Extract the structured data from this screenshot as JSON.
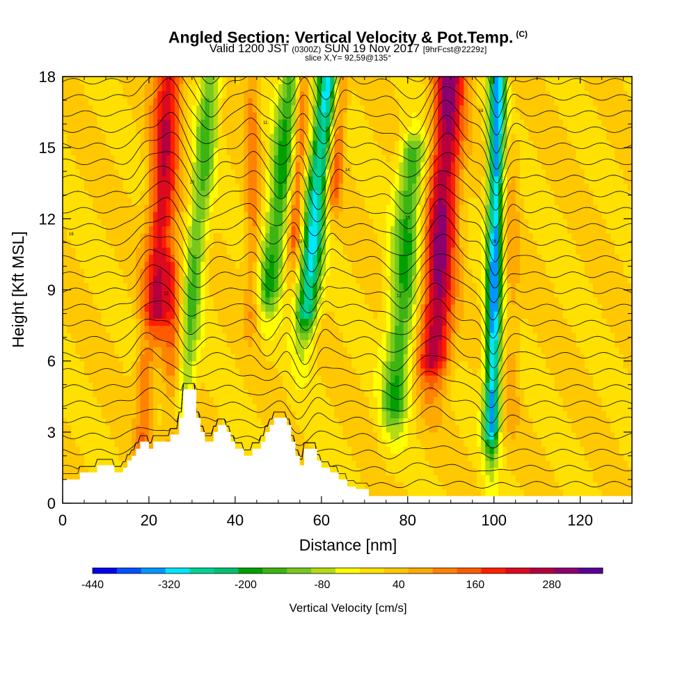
{
  "header": {
    "title": "Angled Section: Vertical Velocity & Pot.Temp.",
    "copyright": "(C)",
    "valid_pre": "Valid 1200 JST",
    "valid_z": "(0300Z)",
    "valid_date": "SUN 19 Nov 2017",
    "forecast": "[9hrFcst@2229z]",
    "slice": "slice X,Y= 92,59@135°"
  },
  "chart_data": {
    "type": "heatmap",
    "xlabel": "Distance [nm]",
    "ylabel": "Height [Kft MSL]",
    "xlim": [
      0,
      132
    ],
    "ylim": [
      0,
      18
    ],
    "x_ticks": [
      0,
      20,
      40,
      60,
      80,
      100,
      120
    ],
    "y_ticks": [
      0,
      3,
      6,
      9,
      12,
      15,
      18
    ],
    "velocity_bands": [
      {
        "center": 22,
        "width": 3.2,
        "amp": 230,
        "top": 18,
        "bottom": 8,
        "tilt": 0.3
      },
      {
        "center": 26,
        "width": 2.5,
        "amp": 120,
        "top": 10,
        "bottom": 2,
        "tilt": 0.0
      },
      {
        "center": 30,
        "width": 2.5,
        "amp": -170,
        "top": 18,
        "bottom": 4,
        "tilt": 0.5
      },
      {
        "center": 44,
        "width": 1.8,
        "amp": 100,
        "top": 18,
        "bottom": 8,
        "tilt": 0.0
      },
      {
        "center": 48,
        "width": 3.0,
        "amp": -210,
        "top": 18,
        "bottom": 9,
        "tilt": 0.6
      },
      {
        "center": 53,
        "width": 1.8,
        "amp": 170,
        "top": 18,
        "bottom": 11,
        "tilt": 0.3
      },
      {
        "center": 57,
        "width": 2.6,
        "amp": -330,
        "top": 18,
        "bottom": 8,
        "tilt": 0.5
      },
      {
        "center": 61,
        "width": 1.8,
        "amp": 150,
        "top": 18,
        "bottom": 13,
        "tilt": 0.4
      },
      {
        "center": 79,
        "width": 3.2,
        "amp": -200,
        "top": 15,
        "bottom": 4,
        "tilt": 0.4
      },
      {
        "center": 87,
        "width": 3.6,
        "amp": 290,
        "top": 18,
        "bottom": 6,
        "tilt": 0.3
      },
      {
        "center": 100,
        "width": 1.8,
        "amp": -380,
        "top": 18,
        "bottom": 3,
        "tilt": 0.1
      },
      {
        "center": 104,
        "width": 1.8,
        "amp": 60,
        "top": 15,
        "bottom": 4,
        "tilt": 0.0
      },
      {
        "center": 19,
        "width": 2.0,
        "amp": 110,
        "top": 6,
        "bottom": 0,
        "tilt": 0.0
      }
    ],
    "terrain": [
      [
        0,
        1.0
      ],
      [
        4,
        1.0
      ],
      [
        4,
        1.3
      ],
      [
        8,
        1.3
      ],
      [
        8,
        1.6
      ],
      [
        12,
        1.6
      ],
      [
        12,
        1.3
      ],
      [
        14,
        1.3
      ],
      [
        14,
        1.5
      ],
      [
        15,
        1.5
      ],
      [
        15,
        1.8
      ],
      [
        16,
        1.8
      ],
      [
        16,
        2.0
      ],
      [
        17,
        2.0
      ],
      [
        17,
        2.3
      ],
      [
        18,
        2.3
      ],
      [
        18,
        2.6
      ],
      [
        20,
        2.6
      ],
      [
        20,
        2.3
      ],
      [
        21,
        2.3
      ],
      [
        21,
        2.6
      ],
      [
        23,
        2.6
      ],
      [
        23,
        2.6
      ],
      [
        25,
        2.6
      ],
      [
        25,
        2.9
      ],
      [
        27,
        2.9
      ],
      [
        27,
        3.6
      ],
      [
        28,
        3.6
      ],
      [
        28,
        4.8
      ],
      [
        31,
        4.8
      ],
      [
        31,
        3.6
      ],
      [
        32,
        3.6
      ],
      [
        32,
        3.0
      ],
      [
        33,
        3.0
      ],
      [
        33,
        2.6
      ],
      [
        35,
        2.6
      ],
      [
        35,
        3.0
      ],
      [
        36,
        3.0
      ],
      [
        36,
        3.3
      ],
      [
        38,
        3.3
      ],
      [
        38,
        3.0
      ],
      [
        39,
        3.0
      ],
      [
        39,
        2.6
      ],
      [
        40,
        2.6
      ],
      [
        40,
        2.3
      ],
      [
        42,
        2.3
      ],
      [
        42,
        2.0
      ],
      [
        44,
        2.0
      ],
      [
        44,
        2.3
      ],
      [
        46,
        2.3
      ],
      [
        46,
        2.6
      ],
      [
        47,
        2.6
      ],
      [
        47,
        3.0
      ],
      [
        48,
        3.0
      ],
      [
        48,
        3.3
      ],
      [
        49,
        3.3
      ],
      [
        49,
        3.6
      ],
      [
        52,
        3.6
      ],
      [
        52,
        3.3
      ],
      [
        53,
        3.3
      ],
      [
        53,
        2.6
      ],
      [
        54,
        2.6
      ],
      [
        54,
        2.0
      ],
      [
        55,
        2.0
      ],
      [
        55,
        1.6
      ],
      [
        56,
        1.6
      ],
      [
        56,
        2.3
      ],
      [
        59,
        2.3
      ],
      [
        59,
        1.8
      ],
      [
        60,
        1.8
      ],
      [
        60,
        1.5
      ],
      [
        62,
        1.5
      ],
      [
        62,
        1.3
      ],
      [
        64,
        1.3
      ],
      [
        64,
        1.0
      ],
      [
        66,
        1.0
      ],
      [
        66,
        0.7
      ],
      [
        68,
        0.7
      ],
      [
        68,
        0.6
      ],
      [
        71,
        0.6
      ],
      [
        71,
        0.3
      ],
      [
        132,
        0.3
      ]
    ],
    "colorbar": {
      "label": "Vertical Velocity [cm/s]",
      "min": -440,
      "max": 320,
      "step": 40,
      "tick_labels": [
        "-440",
        "-320",
        "-200",
        "-80",
        "40",
        "160",
        "280"
      ],
      "colors": [
        "#0000f0",
        "#0050ff",
        "#0096ff",
        "#00e6ff",
        "#00d296",
        "#00c070",
        "#00a000",
        "#3cb414",
        "#78c81e",
        "#b4dc14",
        "#ffff00",
        "#ffe000",
        "#ffc800",
        "#ffaa00",
        "#ff8200",
        "#ff5a00",
        "#ff1e00",
        "#dc0a1e",
        "#b4003c",
        "#8c006e",
        "#5a0096"
      ]
    },
    "isentropes": {
      "count": 27,
      "label_values": [
        "16",
        "12",
        "10",
        "11",
        "13",
        "14",
        "15",
        "18"
      ]
    }
  }
}
